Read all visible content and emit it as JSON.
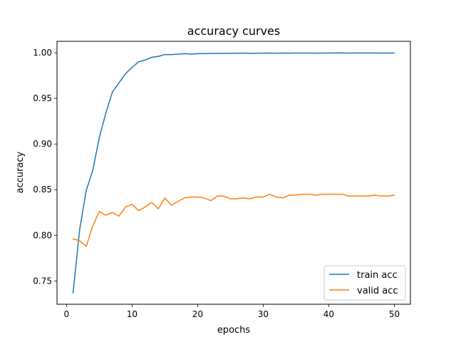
{
  "chart_data": {
    "type": "line",
    "title": "accuracy curves",
    "xlabel": "epochs",
    "ylabel": "accuracy",
    "xlim": [
      -1.45,
      52.45
    ],
    "ylim": [
      0.7245,
      1.0125
    ],
    "xticks": [
      0,
      10,
      20,
      30,
      40,
      50
    ],
    "xtick_labels": [
      "0",
      "10",
      "20",
      "30",
      "40",
      "50"
    ],
    "yticks": [
      0.75,
      0.8,
      0.85,
      0.9,
      0.95,
      1.0
    ],
    "ytick_labels": [
      "0.75",
      "0.80",
      "0.85",
      "0.90",
      "0.95",
      "1.00"
    ],
    "grid": false,
    "legend_position": "lower-right",
    "x": [
      1,
      2,
      3,
      4,
      5,
      6,
      7,
      8,
      9,
      10,
      11,
      12,
      13,
      14,
      15,
      16,
      17,
      18,
      19,
      20,
      21,
      22,
      23,
      24,
      25,
      26,
      27,
      28,
      29,
      30,
      31,
      32,
      33,
      34,
      35,
      36,
      37,
      38,
      39,
      40,
      41,
      42,
      43,
      44,
      45,
      46,
      47,
      48,
      49,
      50
    ],
    "series": [
      {
        "name": "train acc",
        "color": "#1f77b4",
        "values": [
          0.737,
          0.806,
          0.849,
          0.871,
          0.907,
          0.934,
          0.957,
          0.967,
          0.977,
          0.984,
          0.99,
          0.992,
          0.995,
          0.996,
          0.998,
          0.998,
          0.9985,
          0.999,
          0.9985,
          0.999,
          0.999,
          0.9992,
          0.9993,
          0.9993,
          0.9995,
          0.9994,
          0.9996,
          0.9993,
          0.9995,
          0.9995,
          0.9996,
          0.9995,
          0.9996,
          0.9995,
          0.9997,
          0.9996,
          0.9996,
          0.9995,
          0.9996,
          0.9997,
          0.9997,
          0.9998,
          0.9996,
          0.9997,
          0.9997,
          0.9997,
          0.9997,
          0.9996,
          0.9996,
          0.9997
        ]
      },
      {
        "name": "valid acc",
        "color": "#ff7f0e",
        "values": [
          0.796,
          0.794,
          0.788,
          0.81,
          0.826,
          0.822,
          0.825,
          0.821,
          0.831,
          0.834,
          0.827,
          0.831,
          0.836,
          0.829,
          0.841,
          0.833,
          0.837,
          0.841,
          0.842,
          0.842,
          0.841,
          0.838,
          0.843,
          0.843,
          0.84,
          0.84,
          0.841,
          0.84,
          0.842,
          0.842,
          0.845,
          0.842,
          0.841,
          0.844,
          0.844,
          0.845,
          0.845,
          0.844,
          0.845,
          0.845,
          0.845,
          0.845,
          0.843,
          0.843,
          0.843,
          0.843,
          0.844,
          0.843,
          0.843,
          0.844
        ]
      }
    ]
  }
}
